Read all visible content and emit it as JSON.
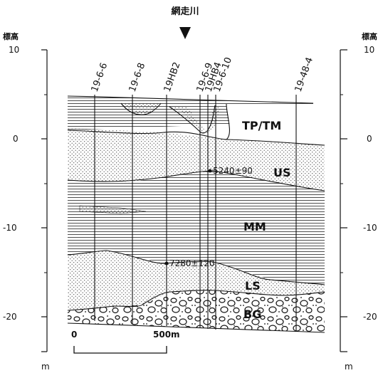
{
  "river": {
    "label": "網走川"
  },
  "axes": {
    "left": {
      "title": "標高",
      "unit": "m",
      "ticks": [
        10,
        0,
        -10,
        -20
      ]
    },
    "right": {
      "title": "標高",
      "unit": "m",
      "ticks": [
        "10",
        "0",
        "-10",
        "-20"
      ]
    }
  },
  "boreholes": [
    "19-6-6",
    "19-6-8",
    "19HB2",
    "19-6-9",
    "19HB4",
    "19-6-10",
    "19-48-4"
  ],
  "layers": {
    "tp_tm": "TP/TM",
    "us": "US",
    "mm": "MM",
    "ls": "LS",
    "bg": "BG"
  },
  "dates": {
    "upper": "5240±90",
    "lower": "7280±120"
  },
  "scale": {
    "zero": "0",
    "end": "500m"
  }
}
